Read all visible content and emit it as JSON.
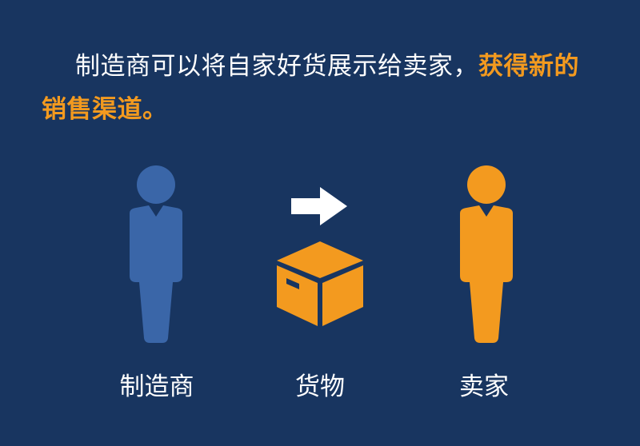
{
  "headline": {
    "text_plain": "制造商可以将自家好货展示给卖家，",
    "text_highlight": "获得新的销售渠道。"
  },
  "labels": {
    "manufacturer": "制造商",
    "goods": "货物",
    "seller": "卖家"
  },
  "colors": {
    "background": "#183560",
    "manufacturer_figure": "#3a66a8",
    "seller_figure": "#f39a1f",
    "box": "#f39a1f",
    "arrow": "#ffffff",
    "highlight_text": "#f39a1f"
  },
  "icons": [
    "person-icon",
    "arrow-right-icon",
    "box-icon",
    "person-icon"
  ]
}
